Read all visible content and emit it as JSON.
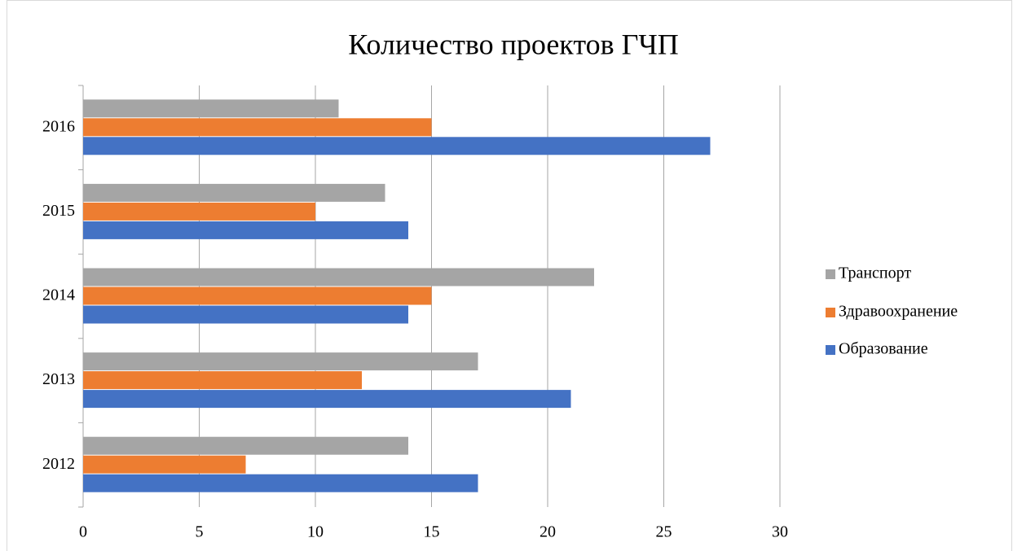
{
  "chart_data": {
    "type": "bar",
    "orientation": "horizontal",
    "title": "Количество проектов ГЧП",
    "categories": [
      "2012",
      "2013",
      "2014",
      "2015",
      "2016"
    ],
    "series": [
      {
        "name": "Образование",
        "color": "#4472c4",
        "values": [
          17,
          21,
          14,
          14,
          27
        ]
      },
      {
        "name": "Здравоохранение",
        "color": "#ed7d31",
        "values": [
          7,
          12,
          15,
          10,
          15
        ]
      },
      {
        "name": "Транспорт",
        "color": "#a5a5a5",
        "values": [
          14,
          17,
          22,
          13,
          11
        ]
      }
    ],
    "xlim": [
      0,
      30
    ],
    "xticks": [
      0,
      5,
      10,
      15,
      20,
      25,
      30
    ],
    "grid": true,
    "legend": "right"
  }
}
